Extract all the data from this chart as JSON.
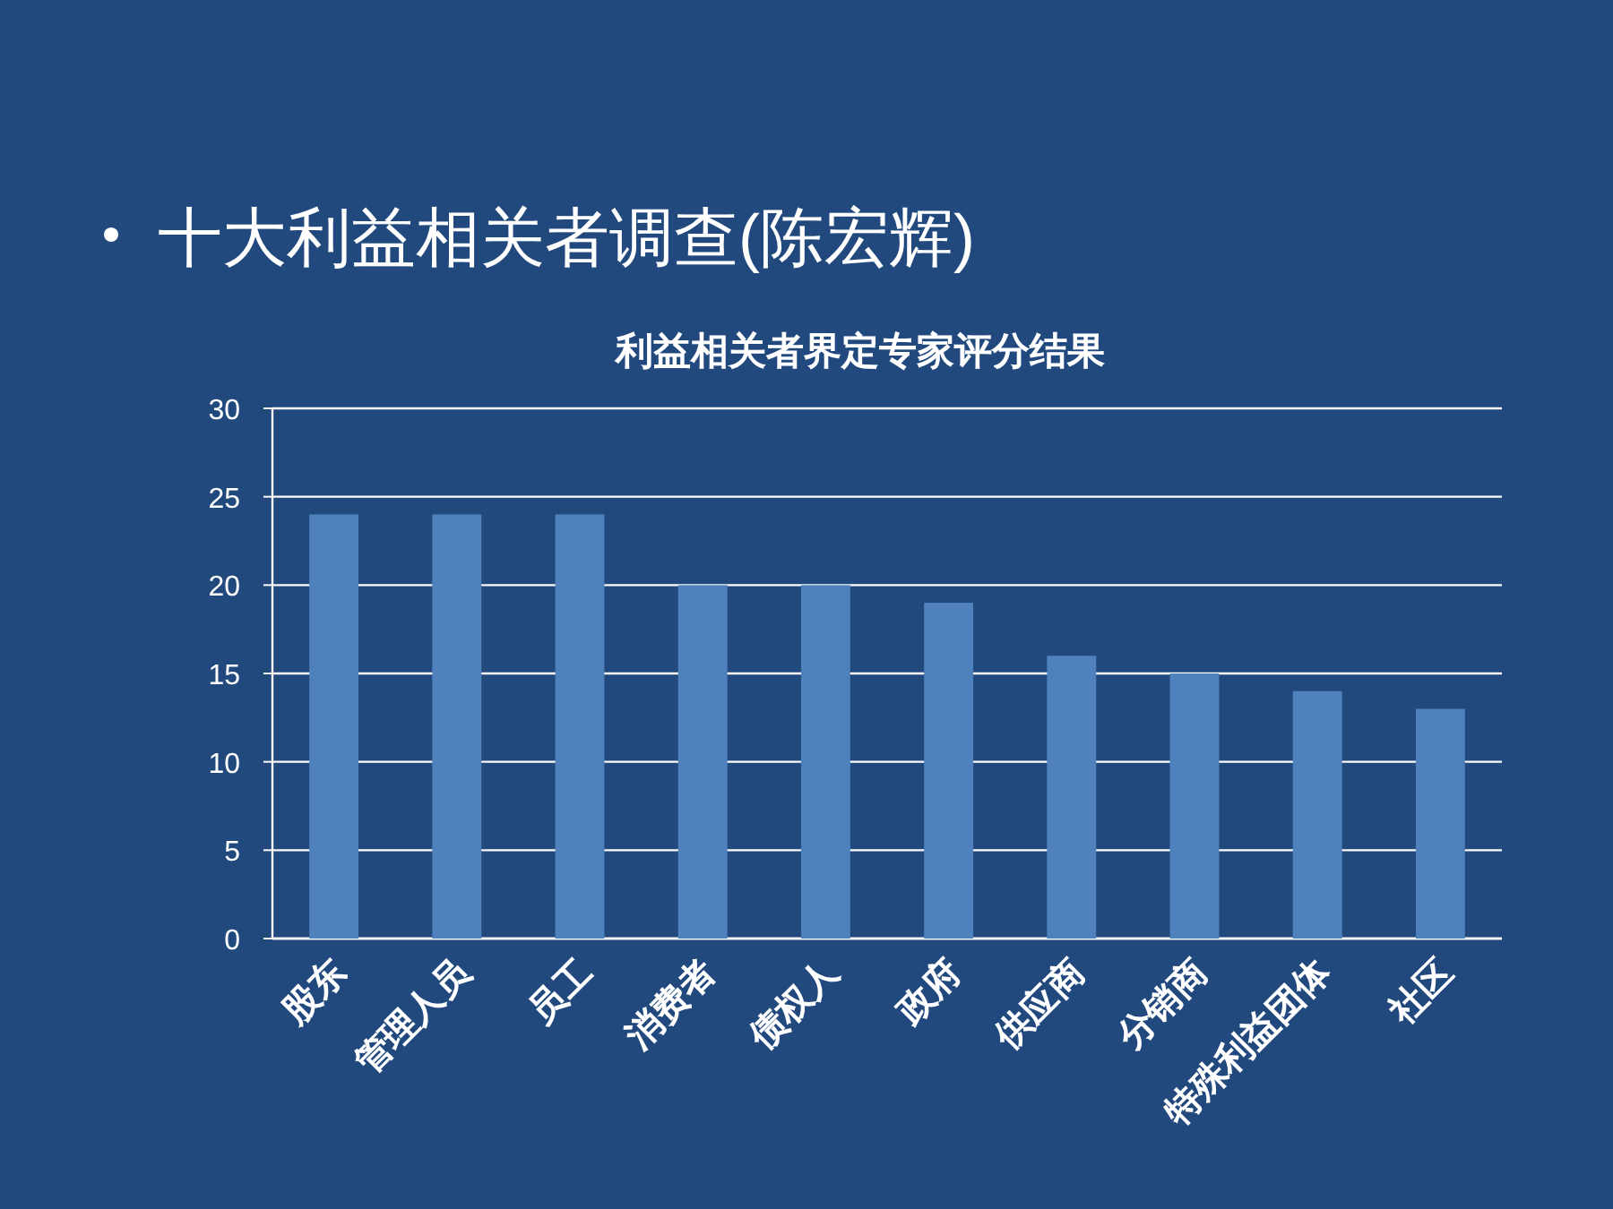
{
  "chart_data": {
    "type": "bar",
    "title": "十大利益相关者调查(陈宏辉)",
    "subtitle": "利益相关者界定专家评分结果",
    "categories": [
      "股东",
      "管理人员",
      "员工",
      "消费者",
      "债权人",
      "政府",
      "供应商",
      "分销商",
      "特殊利益团体",
      "社区"
    ],
    "values": [
      24,
      24,
      24,
      20,
      20,
      19,
      16,
      15,
      14,
      13
    ],
    "color": "#4f81bd",
    "ylim": [
      0,
      30
    ],
    "yticks": [
      0,
      5,
      10,
      15,
      20,
      25,
      30
    ],
    "grid": "y"
  }
}
